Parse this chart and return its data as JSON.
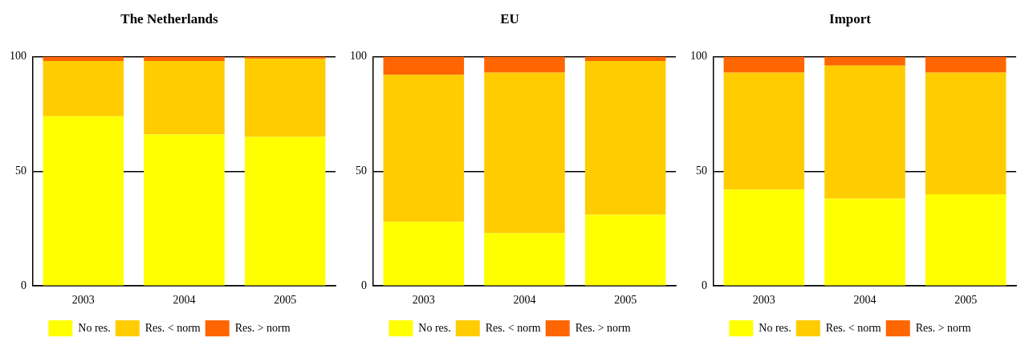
{
  "chart_data": [
    {
      "type": "bar",
      "title": "The Netherlands",
      "categories": [
        "2003",
        "2004",
        "2005"
      ],
      "stacked": true,
      "series": [
        {
          "name": "No res.",
          "color": "#ffff00",
          "values": [
            74,
            66,
            65
          ]
        },
        {
          "name": "Res. < norm",
          "color": "#ffcc00",
          "values": [
            24,
            32,
            34
          ]
        },
        {
          "name": "Res. > norm",
          "color": "#ff6600",
          "values": [
            2,
            2,
            1
          ]
        }
      ],
      "ylim": [
        0,
        100
      ],
      "yticks": [
        0,
        50,
        100
      ],
      "grid": "y",
      "legend": "bottom"
    },
    {
      "type": "bar",
      "title": "EU",
      "categories": [
        "2003",
        "2004",
        "2005"
      ],
      "stacked": true,
      "series": [
        {
          "name": "No res.",
          "color": "#ffff00",
          "values": [
            28,
            23,
            31
          ]
        },
        {
          "name": "Res. < norm",
          "color": "#ffcc00",
          "values": [
            64,
            70,
            67
          ]
        },
        {
          "name": "Res. > norm",
          "color": "#ff6600",
          "values": [
            8,
            7,
            2
          ]
        }
      ],
      "ylim": [
        0,
        100
      ],
      "yticks": [
        0,
        50,
        100
      ],
      "grid": "y",
      "legend": "bottom"
    },
    {
      "type": "bar",
      "title": "Import",
      "categories": [
        "2003",
        "2004",
        "2005"
      ],
      "stacked": true,
      "series": [
        {
          "name": "No res.",
          "color": "#ffff00",
          "values": [
            42,
            38,
            40
          ]
        },
        {
          "name": "Res. < norm",
          "color": "#ffcc00",
          "values": [
            51,
            58,
            53
          ]
        },
        {
          "name": "Res. > norm",
          "color": "#ff6600",
          "values": [
            7,
            4,
            7
          ]
        }
      ],
      "ylim": [
        0,
        100
      ],
      "yticks": [
        0,
        50,
        100
      ],
      "grid": "y",
      "legend": "bottom"
    }
  ]
}
